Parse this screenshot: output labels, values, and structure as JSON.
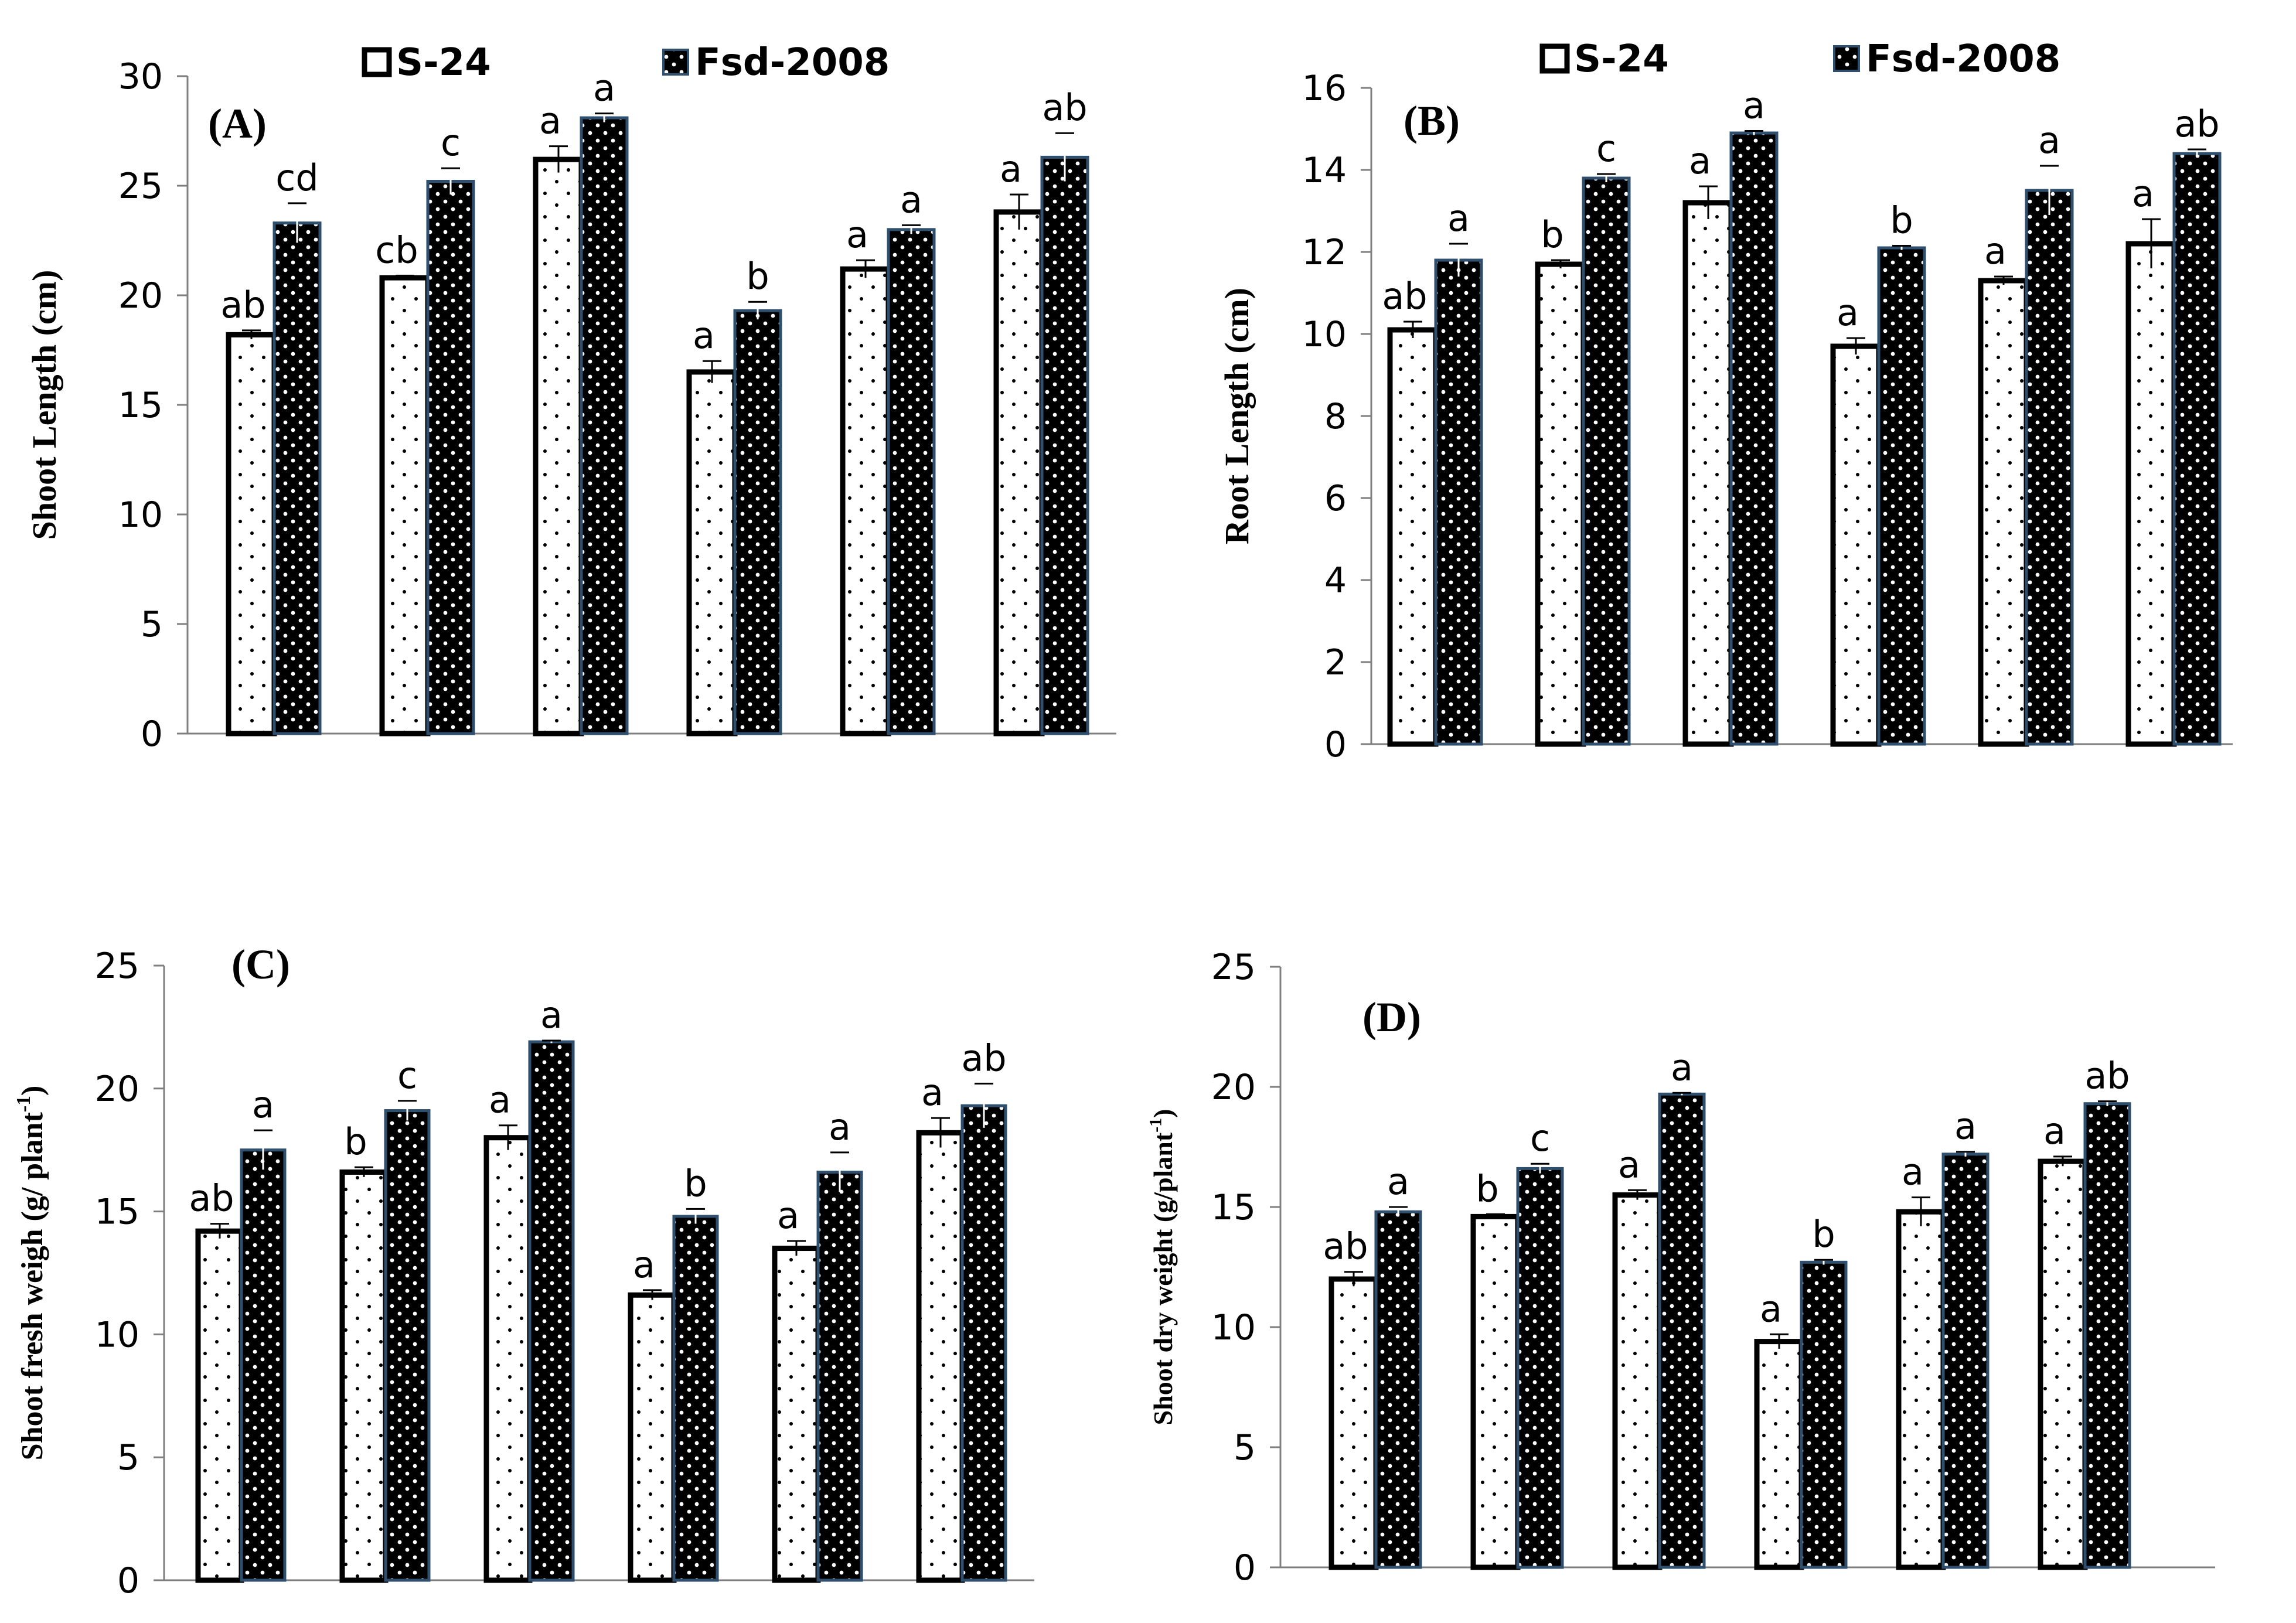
{
  "series_names": [
    "S-24",
    "Fsd-2008"
  ],
  "colors": {
    "axis": "#7f7f7f",
    "bar_outline_s24": "#000000",
    "bar_outline_fsd": "#2f4f6f",
    "bar_fill_fsd": "#000000",
    "dot_light": "#000000",
    "dot_dark": "#ffffff"
  },
  "chart_data": [
    {
      "type": "bar",
      "panel": "(A)",
      "ylabel": "Shoot Length (cm)",
      "ylim": [
        0,
        30
      ],
      "yticks": [
        "0",
        "5",
        "10",
        "15",
        "20",
        "25",
        "30"
      ],
      "legend": [
        "S-24",
        "Fsd-2008"
      ],
      "legend_position": "top",
      "series": [
        {
          "name": "S-24",
          "values": [
            18.2,
            20.8,
            26.2,
            16.5,
            21.2,
            23.8
          ],
          "errors": [
            0.2,
            0.1,
            0.6,
            0.5,
            0.4,
            0.8
          ],
          "letters": [
            "ab",
            "cb",
            "a",
            "a",
            "a",
            "a"
          ]
        },
        {
          "name": "Fsd-2008",
          "values": [
            23.3,
            25.2,
            28.1,
            19.3,
            23.0,
            26.3
          ],
          "errors": [
            0.9,
            0.6,
            0.2,
            0.4,
            0.2,
            1.1
          ],
          "letters": [
            "cd",
            "c",
            "a",
            "b",
            "a",
            "ab"
          ]
        }
      ]
    },
    {
      "type": "bar",
      "panel": "(B)",
      "ylabel": "Root Length (cm)",
      "ylim": [
        0,
        16
      ],
      "yticks": [
        "0",
        "2",
        "4",
        "6",
        "8",
        "10",
        "12",
        "14",
        "16"
      ],
      "legend": [
        "S-24",
        "Fsd-2008"
      ],
      "legend_position": "top",
      "series": [
        {
          "name": "S-24",
          "values": [
            10.1,
            11.7,
            13.2,
            9.7,
            11.3,
            12.2
          ],
          "errors": [
            0.2,
            0.1,
            0.4,
            0.2,
            0.1,
            0.6
          ],
          "letters": [
            "ab",
            "b",
            "a",
            "a",
            "a",
            "a"
          ]
        },
        {
          "name": "Fsd-2008",
          "values": [
            11.8,
            13.8,
            14.9,
            12.1,
            13.5,
            14.4
          ],
          "errors": [
            0.4,
            0.1,
            0.05,
            0.05,
            0.6,
            0.1
          ],
          "letters": [
            "a",
            "c",
            "a",
            "b",
            "a",
            "ab"
          ]
        }
      ]
    },
    {
      "type": "bar",
      "panel": "(C)",
      "ylabel": "Shoot fresh weigh (g/ plant",
      "ylabel_sup": "-1",
      "ylabel_end": ")",
      "ylim": [
        0,
        25
      ],
      "yticks": [
        "0",
        "5",
        "10",
        "15",
        "20",
        "25"
      ],
      "series": [
        {
          "name": "S-24",
          "values": [
            14.2,
            16.6,
            18.0,
            11.6,
            13.5,
            18.2
          ],
          "errors": [
            0.3,
            0.2,
            0.5,
            0.2,
            0.3,
            0.6
          ],
          "letters": [
            "ab",
            "b",
            "a",
            "a",
            "a",
            "a"
          ]
        },
        {
          "name": "Fsd-2008",
          "values": [
            17.5,
            19.1,
            21.9,
            14.8,
            16.6,
            19.3
          ],
          "errors": [
            0.8,
            0.4,
            0.05,
            0.3,
            0.8,
            0.9
          ],
          "letters": [
            "a",
            "c",
            "a",
            "b",
            "a",
            "ab"
          ]
        }
      ]
    },
    {
      "type": "bar",
      "panel": "(D)",
      "ylabel": "Shoot dry weight (g/plant",
      "ylabel_sup": "-1",
      "ylabel_end": ")",
      "ylim": [
        0,
        25
      ],
      "yticks": [
        "0",
        "5",
        "10",
        "15",
        "20",
        "25"
      ],
      "series": [
        {
          "name": "S-24",
          "values": [
            12.0,
            14.6,
            15.5,
            9.4,
            14.8,
            16.9
          ],
          "errors": [
            0.3,
            0.1,
            0.2,
            0.3,
            0.6,
            0.2
          ],
          "letters": [
            "ab",
            "b",
            "a",
            "a",
            "a",
            "a"
          ]
        },
        {
          "name": "Fsd-2008",
          "values": [
            14.8,
            16.6,
            19.7,
            12.7,
            17.2,
            19.3
          ],
          "errors": [
            0.2,
            0.2,
            0.05,
            0.1,
            0.1,
            0.1
          ],
          "letters": [
            "a",
            "c",
            "a",
            "b",
            "a",
            "ab"
          ]
        }
      ]
    }
  ]
}
